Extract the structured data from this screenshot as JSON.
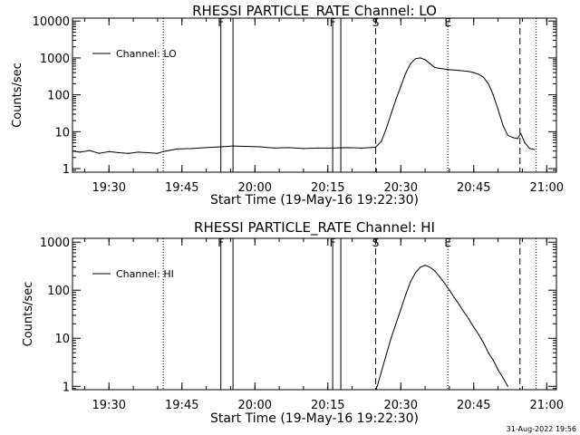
{
  "footer": {
    "timestamp": "31-Aug-2022 19:56"
  },
  "chart_data": [
    {
      "type": "line",
      "title": "RHESSI PARTICLE_RATE Channel: LO",
      "xlabel": "Start Time (19-May-16 19:22:30)",
      "ylabel": "Counts/sec",
      "xscale": "time",
      "yscale": "log",
      "xlim": [
        "19:22:30",
        "21:02:00"
      ],
      "ylim": [
        0.8,
        12000
      ],
      "xticks": [
        "19:30",
        "19:45",
        "20:00",
        "20:15",
        "20:30",
        "20:45",
        "21:00"
      ],
      "yticks": [
        "1",
        "10",
        "100",
        "1000",
        "10000"
      ],
      "legend": {
        "label": "Channel: LO",
        "position": "top-left"
      },
      "markers": [
        {
          "label": "F",
          "time": "19:53:00",
          "style": "solid"
        },
        {
          "label": "",
          "time": "19:55:30",
          "style": "solid"
        },
        {
          "label": "F",
          "time": "20:16:00",
          "style": "solid"
        },
        {
          "label": "",
          "time": "20:17:40",
          "style": "solid"
        },
        {
          "label": "S",
          "time": "20:24:50",
          "style": "dashed"
        },
        {
          "label": "E",
          "time": "20:39:40",
          "style": "dotted"
        },
        {
          "label": "",
          "time": "19:41:10",
          "style": "dotted"
        },
        {
          "label": "",
          "time": "20:54:30",
          "style": "dashed"
        },
        {
          "label": "",
          "time": "20:57:50",
          "style": "dotted"
        }
      ],
      "series": [
        {
          "name": "Channel: LO",
          "x": [
            "19:22:30",
            "19:24:00",
            "19:26:00",
            "19:28:00",
            "19:30:00",
            "19:32:00",
            "19:34:00",
            "19:36:00",
            "19:38:00",
            "19:40:00",
            "19:41:10",
            "19:44:00",
            "19:47:00",
            "19:50:00",
            "19:53:00",
            "19:55:30",
            "19:58:00",
            "20:01:00",
            "20:04:00",
            "20:07:00",
            "20:10:00",
            "20:13:00",
            "20:16:00",
            "20:19:00",
            "20:22:00",
            "20:24:50",
            "20:26:00",
            "20:27:00",
            "20:28:00",
            "20:29:00",
            "20:30:00",
            "20:31:00",
            "20:32:00",
            "20:33:00",
            "20:34:00",
            "20:35:00",
            "20:36:00",
            "20:37:00",
            "20:38:00",
            "20:40:00",
            "20:42:00",
            "20:44:00",
            "20:45:00",
            "20:46:00",
            "20:47:00",
            "20:48:00",
            "20:49:00",
            "20:50:00",
            "20:51:00",
            "20:52:00",
            "20:53:00",
            "20:54:00",
            "20:54:40",
            "20:55:30",
            "20:56:30",
            "20:57:30"
          ],
          "y": [
            3.0,
            2.8,
            3.1,
            2.6,
            2.9,
            2.7,
            2.6,
            2.8,
            2.7,
            2.6,
            2.9,
            3.4,
            3.5,
            3.7,
            3.9,
            4.1,
            4.0,
            3.9,
            3.6,
            3.7,
            3.5,
            3.6,
            3.6,
            3.7,
            3.6,
            3.8,
            5.5,
            12,
            30,
            75,
            170,
            380,
            700,
            950,
            1000,
            900,
            700,
            550,
            520,
            480,
            460,
            430,
            400,
            360,
            300,
            200,
            100,
            40,
            15,
            8,
            7,
            6.5,
            9,
            5,
            3.5,
            3.3
          ]
        }
      ]
    },
    {
      "type": "line",
      "title": "RHESSI PARTICLE_RATE Channel: HI",
      "xlabel": "Start Time (19-May-16 19:22:30)",
      "ylabel": "Counts/sec",
      "xscale": "time",
      "yscale": "log",
      "xlim": [
        "19:22:30",
        "21:02:00"
      ],
      "ylim": [
        0.85,
        1200
      ],
      "xticks": [
        "19:30",
        "19:45",
        "20:00",
        "20:15",
        "20:30",
        "20:45",
        "21:00"
      ],
      "yticks": [
        "1",
        "10",
        "100",
        "1000"
      ],
      "legend": {
        "label": "Channel: HI",
        "position": "top-left"
      },
      "markers": [
        {
          "label": "F",
          "time": "19:53:00",
          "style": "solid"
        },
        {
          "label": "",
          "time": "19:55:30",
          "style": "solid"
        },
        {
          "label": "F",
          "time": "20:16:00",
          "style": "solid"
        },
        {
          "label": "",
          "time": "20:17:40",
          "style": "solid"
        },
        {
          "label": "S",
          "time": "20:24:50",
          "style": "dashed"
        },
        {
          "label": "E",
          "time": "20:39:40",
          "style": "dotted"
        },
        {
          "label": "",
          "time": "19:41:10",
          "style": "dotted"
        },
        {
          "label": "",
          "time": "20:54:30",
          "style": "dashed"
        },
        {
          "label": "",
          "time": "20:57:50",
          "style": "dotted"
        }
      ],
      "series": [
        {
          "name": "Channel: HI",
          "x": [
            "20:25:10",
            "20:26:00",
            "20:27:00",
            "20:28:00",
            "20:29:00",
            "20:30:00",
            "20:31:00",
            "20:32:00",
            "20:33:00",
            "20:34:00",
            "20:35:00",
            "20:36:00",
            "20:37:00",
            "20:38:00",
            "20:39:00",
            "20:40:00",
            "20:41:00",
            "20:42:00",
            "20:43:00",
            "20:44:00",
            "20:45:00",
            "20:46:00",
            "20:47:00",
            "20:48:00",
            "20:49:00",
            "20:50:00",
            "20:51:00",
            "20:52:00"
          ],
          "y": [
            1.0,
            2.0,
            4.5,
            10,
            20,
            40,
            80,
            150,
            230,
            300,
            330,
            300,
            250,
            190,
            140,
            100,
            70,
            50,
            35,
            25,
            17,
            12,
            8,
            5,
            3.5,
            2.2,
            1.5,
            1.0
          ]
        }
      ]
    }
  ]
}
